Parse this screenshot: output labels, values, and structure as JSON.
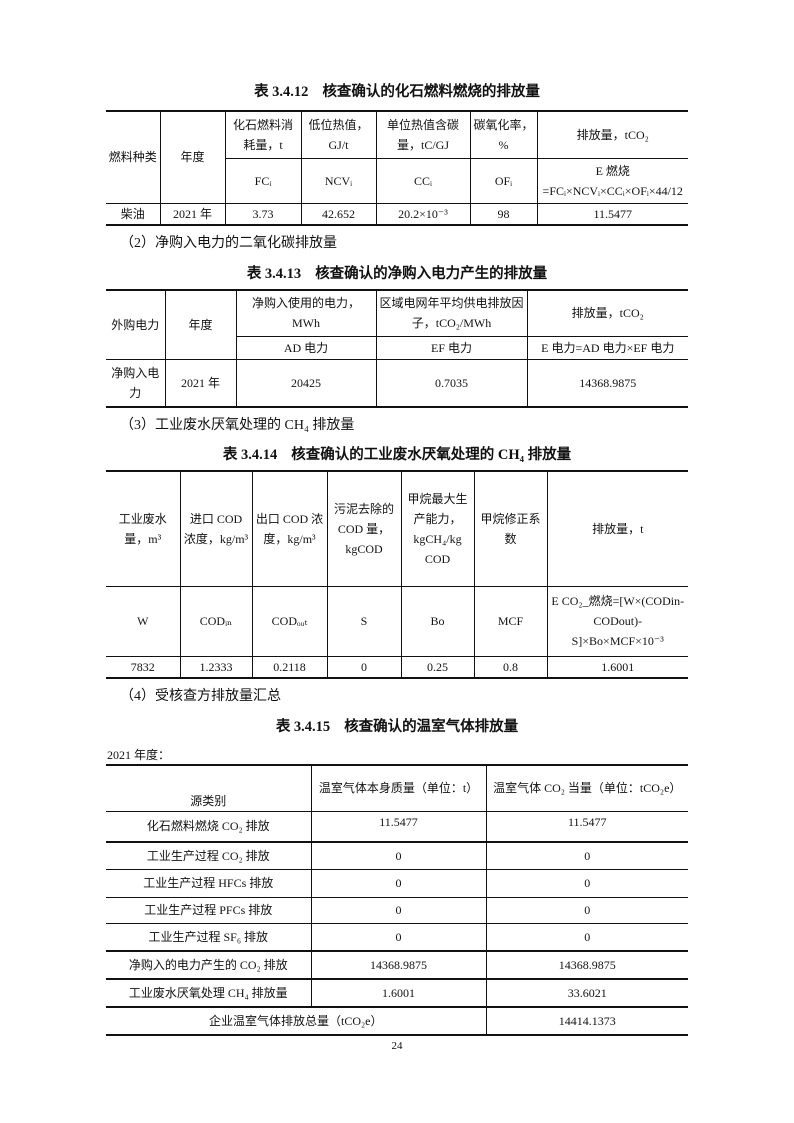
{
  "t1": {
    "caption_num": "表 3.4.12",
    "caption": "核查确认的化石燃料燃烧的排放量",
    "headers": [
      "燃料种类",
      "年度",
      "化石燃料消耗量，t",
      "低位热值，GJ/t",
      "单位热值含碳量，tC/GJ",
      "碳氧化率，%",
      "排放量，tCO₂"
    ],
    "symbols": [
      "FCᵢ",
      "NCVᵢ",
      "CCᵢ",
      "OFᵢ",
      "E 燃烧=FCᵢ×NCVᵢ×CCᵢ×OFᵢ×44/12"
    ],
    "row": [
      "柴油",
      "2021 年",
      "3.73",
      "42.652",
      "20.2×10⁻³",
      "98",
      "11.5477"
    ]
  },
  "p2": "（2）净购入电力的二氧化碳排放量",
  "t2": {
    "caption_num": "表 3.4.13",
    "caption": "核查确认的净购入电力产生的排放量",
    "headers": [
      "外购电力",
      "年度",
      "净购入使用的电力，MWh",
      "区域电网年平均供电排放因子，tCO₂/MWh",
      "排放量，tCO₂"
    ],
    "symbols": [
      "AD 电力",
      "EF 电力",
      "E 电力=AD 电力×EF 电力"
    ],
    "row": [
      "净购入电力",
      "2021 年",
      "20425",
      "0.7035",
      "14368.9875"
    ]
  },
  "p3": "（3）工业废水厌氧处理的 CH₄ 排放量",
  "t3": {
    "caption_num": "表 3.4.14",
    "caption": "核查确认的工业废水厌氧处理的 CH₄ 排放量",
    "headers": [
      "工业废水量，m³",
      "进口 COD 浓度，kg/m³",
      "出口 COD 浓度，kg/m³",
      "污泥去除的 COD 量，kgCOD",
      "甲烷最大生产能力，kgCH₄/kg COD",
      "甲烷修正系数",
      "排放量，t"
    ],
    "symbols": [
      "W",
      "CODᵢₙ",
      "CODₒᵤₜ",
      "S",
      "Bo",
      "MCF",
      "E CO₂_燃烧=[W×(CODin-CODout)-S]×Bo×MCF×10⁻³"
    ],
    "row": [
      "7832",
      "1.2333",
      "0.2118",
      "0",
      "0.25",
      "0.8",
      "1.6001"
    ]
  },
  "p4": "（4）受核查方排放量汇总",
  "t4": {
    "caption_num": "表 3.4.15",
    "caption": "核查确认的温室气体排放量",
    "year_note": "2021 年度：",
    "headers": [
      "源类别",
      "温室气体本身质量（单位：t）",
      "温室气体 CO₂ 当量（单位：tCO₂e）"
    ],
    "rows": [
      [
        "化石燃料燃烧 CO₂ 排放",
        "11.5477",
        "11.5477"
      ],
      [
        "工业生产过程 CO₂ 排放",
        "0",
        "0"
      ],
      [
        "工业生产过程 HFCs 排放",
        "0",
        "0"
      ],
      [
        "工业生产过程 PFCs 排放",
        "0",
        "0"
      ],
      [
        "工业生产过程 SF₆ 排放",
        "0",
        "0"
      ],
      [
        "净购入的电力产生的 CO₂ 排放",
        "14368.9875",
        "14368.9875"
      ],
      [
        "工业废水厌氧处理 CH₄ 排放量",
        "1.6001",
        "33.6021"
      ]
    ],
    "total": [
      "企业温室气体排放总量（tCO₂e）",
      "14414.1373"
    ]
  },
  "page_number": "24"
}
